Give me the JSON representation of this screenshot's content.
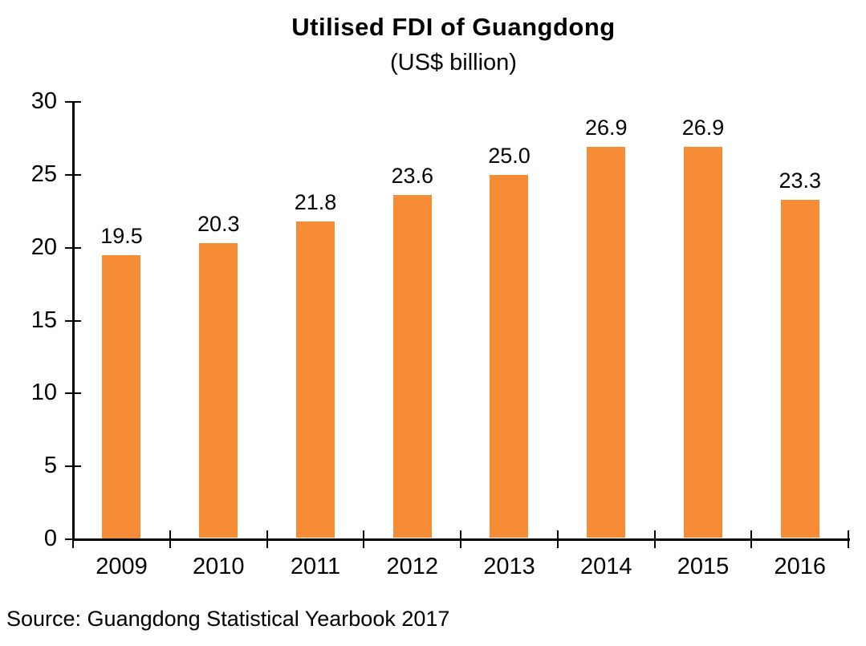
{
  "chart": {
    "title": "Utilised FDI of Guangdong",
    "subtitle": "(US$ billion)",
    "source": "Source: Guangdong Statistical Yearbook 2017"
  },
  "chart_data": {
    "type": "bar",
    "title": "Utilised FDI of Guangdong",
    "subtitle": "(US$ billion)",
    "categories": [
      "2009",
      "2010",
      "2011",
      "2012",
      "2013",
      "2014",
      "2015",
      "2016"
    ],
    "values": [
      19.5,
      20.3,
      21.8,
      23.6,
      25.0,
      26.9,
      26.9,
      23.3
    ],
    "value_labels": [
      "19.5",
      "20.3",
      "21.8",
      "23.6",
      "25.0",
      "26.9",
      "26.9",
      "23.3"
    ],
    "xlabel": "",
    "ylabel": "",
    "ylim": [
      0,
      30
    ],
    "yticks": [
      0,
      5,
      10,
      15,
      20,
      25,
      30
    ],
    "grid": false,
    "legend": "none",
    "bar_color": "#F68C35",
    "axis_color": "#000000",
    "text_color": "#000000",
    "source": "Source: Guangdong Statistical Yearbook 2017"
  }
}
